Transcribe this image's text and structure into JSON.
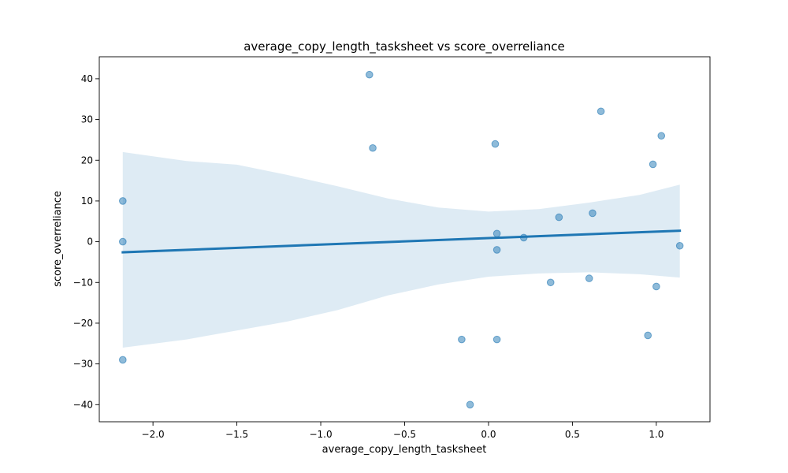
{
  "chart_data": {
    "type": "scatter",
    "title": "average_copy_length_tasksheet vs score_overreliance",
    "xlabel": "average_copy_length_tasksheet",
    "ylabel": "score_overreliance",
    "xlim": [
      -2.32,
      1.32
    ],
    "ylim": [
      -44.2,
      45.4
    ],
    "xticks": [
      -2.0,
      -1.5,
      -1.0,
      -0.5,
      0.0,
      0.5,
      1.0
    ],
    "xtick_labels": [
      "−2.0",
      "−1.5",
      "−1.0",
      "−0.5",
      "0.0",
      "0.5",
      "1.0"
    ],
    "yticks": [
      -40,
      -30,
      -20,
      -10,
      0,
      10,
      20,
      30,
      40
    ],
    "ytick_labels": [
      "−40",
      "−30",
      "−20",
      "−10",
      "0",
      "10",
      "20",
      "30",
      "40"
    ],
    "grid": false,
    "points": [
      {
        "x": -2.18,
        "y": 10
      },
      {
        "x": -2.18,
        "y": 0
      },
      {
        "x": -2.18,
        "y": -29
      },
      {
        "x": -0.71,
        "y": 41
      },
      {
        "x": -0.69,
        "y": 23
      },
      {
        "x": -0.16,
        "y": -24
      },
      {
        "x": -0.11,
        "y": -40
      },
      {
        "x": 0.04,
        "y": 24
      },
      {
        "x": 0.05,
        "y": 2
      },
      {
        "x": 0.05,
        "y": -2
      },
      {
        "x": 0.05,
        "y": -24
      },
      {
        "x": 0.21,
        "y": 1
      },
      {
        "x": 0.37,
        "y": -10
      },
      {
        "x": 0.42,
        "y": 6
      },
      {
        "x": 0.6,
        "y": -9
      },
      {
        "x": 0.62,
        "y": 7
      },
      {
        "x": 0.67,
        "y": 32
      },
      {
        "x": 0.95,
        "y": -23
      },
      {
        "x": 0.98,
        "y": 19
      },
      {
        "x": 1.0,
        "y": -11
      },
      {
        "x": 1.03,
        "y": 26
      },
      {
        "x": 1.14,
        "y": -1
      }
    ],
    "regression_line": [
      {
        "x": -2.18,
        "y": -2.6
      },
      {
        "x": 1.14,
        "y": 2.7
      }
    ],
    "confidence_band": [
      {
        "x": -2.18,
        "upper": 22.0,
        "lower": -26.0
      },
      {
        "x": -1.8,
        "upper": 19.8,
        "lower": -24.0
      },
      {
        "x": -1.5,
        "upper": 18.9,
        "lower": -21.8
      },
      {
        "x": -1.2,
        "upper": 16.4,
        "lower": -19.6
      },
      {
        "x": -0.9,
        "upper": 13.6,
        "lower": -16.8
      },
      {
        "x": -0.6,
        "upper": 10.6,
        "lower": -13.2
      },
      {
        "x": -0.3,
        "upper": 8.4,
        "lower": -10.5
      },
      {
        "x": 0.0,
        "upper": 7.4,
        "lower": -8.6
      },
      {
        "x": 0.3,
        "upper": 8.0,
        "lower": -7.8
      },
      {
        "x": 0.6,
        "upper": 9.6,
        "lower": -7.5
      },
      {
        "x": 0.9,
        "upper": 11.5,
        "lower": -8.0
      },
      {
        "x": 1.14,
        "upper": 14.0,
        "lower": -8.8
      }
    ],
    "colors": {
      "points": "#1f77b4",
      "line": "#1f77b4",
      "band": "#1f77b4"
    }
  }
}
